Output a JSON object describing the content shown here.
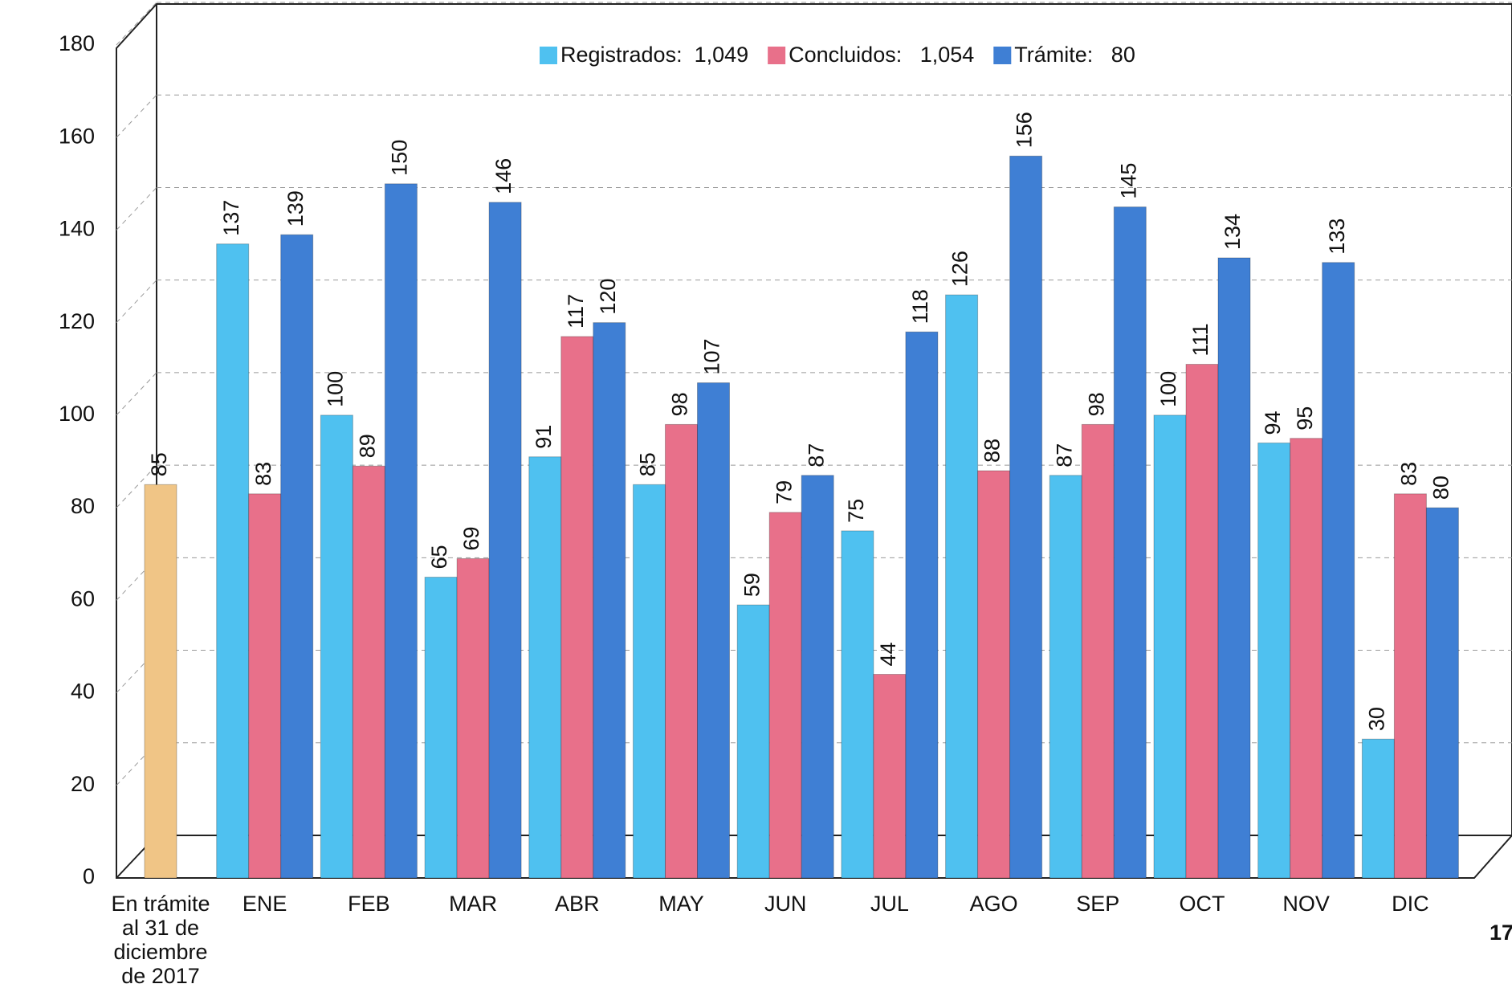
{
  "chart_data": {
    "type": "bar",
    "categories": [
      "En trámite al 31 de diciembre de 2017",
      "ENE",
      "FEB",
      "MAR",
      "ABR",
      "MAY",
      "JUN",
      "JUL",
      "AGO",
      "SEP",
      "OCT",
      "NOV",
      "DIC"
    ],
    "opening": {
      "value": 85,
      "color": "#f0c586"
    },
    "series": [
      {
        "name": "Registrados:  1,049",
        "color": "#4fc1f0",
        "values": [
          null,
          137,
          100,
          65,
          91,
          85,
          59,
          75,
          126,
          87,
          100,
          94,
          30
        ]
      },
      {
        "name": "Concluidos:   1,054",
        "color": "#e8708a",
        "values": [
          null,
          83,
          89,
          69,
          117,
          98,
          79,
          44,
          88,
          98,
          111,
          95,
          83
        ]
      },
      {
        "name": "Trámite:   80",
        "color": "#3f7fd4",
        "values": [
          null,
          139,
          150,
          146,
          120,
          107,
          87,
          118,
          156,
          145,
          134,
          133,
          80
        ]
      }
    ],
    "ylim": [
      0,
      180
    ],
    "yticks": [
      0,
      20,
      40,
      60,
      80,
      100,
      120,
      140,
      160,
      180
    ],
    "grid": true,
    "page_number": "17"
  }
}
